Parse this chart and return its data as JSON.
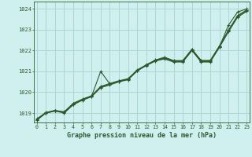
{
  "title": "Graphe pression niveau de la mer (hPa)",
  "bg_color": "#cff0ee",
  "grid_color": "#aad8d4",
  "line_color": "#2d5a2d",
  "xlim": [
    -0.3,
    23.3
  ],
  "ylim": [
    1018.55,
    1024.35
  ],
  "yticks": [
    1019,
    1020,
    1021,
    1022,
    1023,
    1024
  ],
  "xticks": [
    0,
    1,
    2,
    3,
    4,
    5,
    6,
    7,
    8,
    9,
    10,
    11,
    12,
    13,
    14,
    15,
    16,
    17,
    18,
    19,
    20,
    21,
    22,
    23
  ],
  "series": [
    [
      1018.7,
      1019.0,
      1019.1,
      1019.05,
      1019.45,
      1019.65,
      1019.82,
      1020.25,
      1020.38,
      1020.52,
      1020.63,
      1021.05,
      1021.3,
      1021.52,
      1021.65,
      1021.5,
      1021.5,
      1022.05,
      1021.52,
      1021.52,
      1022.2,
      1022.95,
      1023.65,
      1023.92
    ],
    [
      1018.65,
      1019.0,
      1019.1,
      1019.0,
      1019.4,
      1019.62,
      1019.78,
      1020.22,
      1020.35,
      1020.5,
      1020.6,
      1021.02,
      1021.28,
      1021.5,
      1021.6,
      1021.45,
      1021.45,
      1022.0,
      1021.45,
      1021.45,
      1022.15,
      1022.9,
      1023.6,
      1023.88
    ],
    [
      1018.68,
      1019.02,
      1019.12,
      1019.03,
      1019.42,
      1019.63,
      1019.8,
      1021.0,
      1020.4,
      1020.53,
      1020.62,
      1021.04,
      1021.3,
      1021.52,
      1021.62,
      1021.47,
      1021.47,
      1022.02,
      1021.47,
      1021.47,
      1022.17,
      1023.22,
      1023.85,
      1024.0
    ],
    [
      1018.72,
      1019.03,
      1019.13,
      1019.06,
      1019.47,
      1019.67,
      1019.83,
      1020.28,
      1020.42,
      1020.55,
      1020.65,
      1021.07,
      1021.32,
      1021.55,
      1021.68,
      1021.52,
      1021.52,
      1022.07,
      1021.52,
      1021.52,
      1022.22,
      1022.98,
      1023.68,
      1023.95
    ]
  ]
}
